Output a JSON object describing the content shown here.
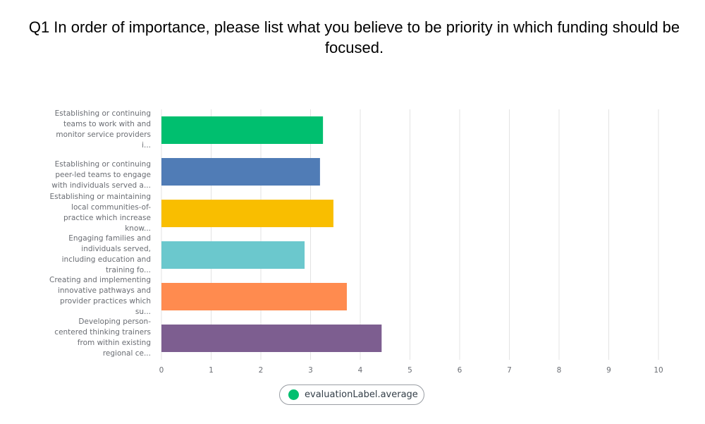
{
  "chart_data": {
    "type": "bar",
    "orientation": "horizontal",
    "title": "Q1 In order of importance, please list what you believe to be priority in which funding should be focused.",
    "categories": [
      [
        "Establishing or continuing",
        "teams to work with and",
        "monitor service providers",
        "i..."
      ],
      [
        "Establishing or continuing",
        "peer-led teams to engage",
        "with individuals served a..."
      ],
      [
        "Establishing or maintaining",
        "local communities-of-",
        "practice which increase",
        "know..."
      ],
      [
        "Engaging families and",
        "individuals served,",
        "including education and",
        "training fo..."
      ],
      [
        "Creating and implementing",
        "innovative pathways and",
        "provider practices which",
        "su..."
      ],
      [
        "Developing person-",
        "centered thinking trainers",
        "from within existing",
        "regional ce..."
      ]
    ],
    "values": [
      3.25,
      3.19,
      3.46,
      2.88,
      3.73,
      4.43
    ],
    "colors": [
      "#00bf6f",
      "#507cb6",
      "#f9be00",
      "#6bc8cd",
      "#ff8b4f",
      "#7d5e90"
    ],
    "xlim": [
      0,
      10
    ],
    "xticks": [
      "0",
      "1",
      "2",
      "3",
      "4",
      "5",
      "6",
      "7",
      "8",
      "9",
      "10"
    ],
    "grid": true,
    "legend": {
      "label": "evaluationLabel.average",
      "color": "#00bf6f",
      "placement": "bottom-center"
    }
  }
}
